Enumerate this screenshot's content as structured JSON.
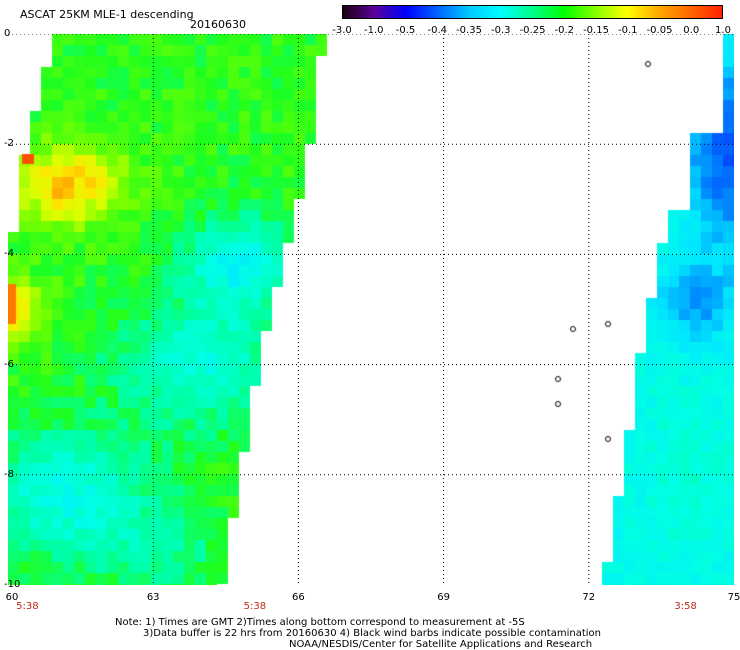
{
  "header": {
    "title": "ASCAT 25KM MLE-1 descending",
    "date": "20160630"
  },
  "colorbar": {
    "labels": [
      "-3.0",
      "-1.0",
      "-0.5",
      "-0.4",
      "-0.35",
      "-0.3",
      "-0.25",
      "-0.2",
      "-0.15",
      "-0.1",
      "-0.05",
      "0.0",
      "1.0"
    ],
    "colors": [
      "#1a0010",
      "#5a009a",
      "#0000ff",
      "#0066ff",
      "#00c8ff",
      "#00ffff",
      "#00ff88",
      "#00ff00",
      "#88ff00",
      "#ffff00",
      "#ffaa00",
      "#ff6600",
      "#ff2200"
    ]
  },
  "axes": {
    "x_ticks": [
      "60",
      "63",
      "66",
      "69",
      "72",
      "75"
    ],
    "y_ticks": [
      "0",
      "-2",
      "-4",
      "-6",
      "-8",
      "-10"
    ],
    "xlim": [
      60,
      75
    ],
    "ylim": [
      -10,
      0
    ]
  },
  "swath_times": [
    "5:38",
    "5:38",
    "3:58"
  ],
  "notes": {
    "line1": "Note: 1) Times are GMT 2)Times along bottom correspond to measurement at -5S",
    "line2": "3)Data buffer is 22 hrs from 20160630 4) Black wind barbs indicate possible contamination",
    "line3": "NOAA/NESDIS/Center for Satellite Applications and Research"
  }
}
